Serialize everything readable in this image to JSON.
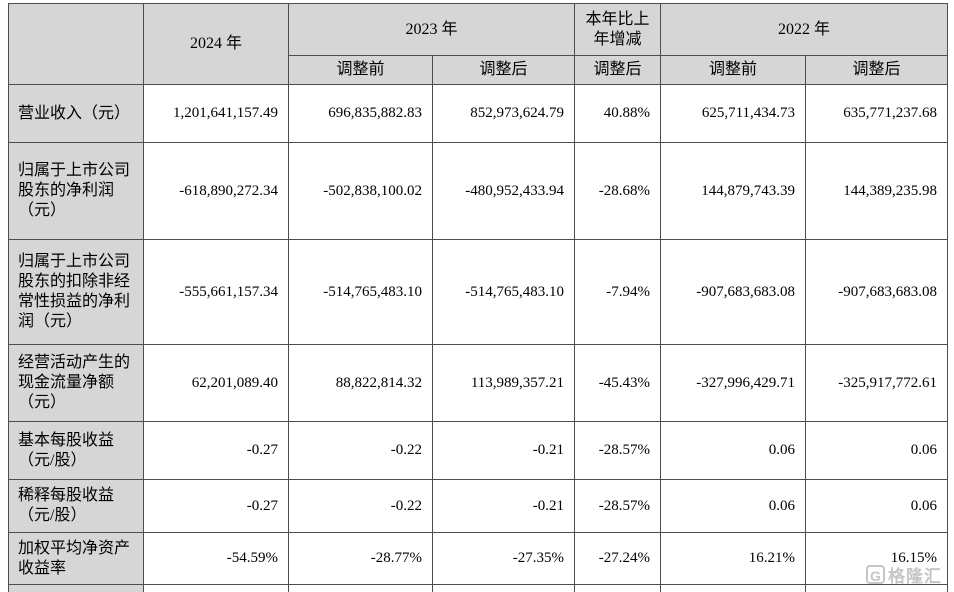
{
  "table": {
    "header": {
      "corner": "",
      "col_2024": "2024 年",
      "col_2023": "2023 年",
      "col_yoy": "本年比上年增减",
      "col_2022": "2022 年",
      "sub_2023_pre": "调整前",
      "sub_2023_post": "调整后",
      "sub_yoy_post": "调整后",
      "sub_2022_pre": "调整前",
      "sub_2022_post": "调整后"
    },
    "rows": [
      {
        "label": "营业收入（元）",
        "values": [
          "1,201,641,157.49",
          "696,835,882.83",
          "852,973,624.79",
          "40.88%",
          "625,711,434.73",
          "635,771,237.68"
        ]
      },
      {
        "label": "归属于上市公司股东的净利润（元）",
        "values": [
          "-618,890,272.34",
          "-502,838,100.02",
          "-480,952,433.94",
          "-28.68%",
          "144,879,743.39",
          "144,389,235.98"
        ]
      },
      {
        "label": "归属于上市公司股东的扣除非经常性损益的净利润（元）",
        "values": [
          "-555,661,157.34",
          "-514,765,483.10",
          "-514,765,483.10",
          "-7.94%",
          "-907,683,683.08",
          "-907,683,683.08"
        ]
      },
      {
        "label": "经营活动产生的现金流量净额（元）",
        "values": [
          "62,201,089.40",
          "88,822,814.32",
          "113,989,357.21",
          "-45.43%",
          "-327,996,429.71",
          "-325,917,772.61"
        ]
      },
      {
        "label": "基本每股收益（元/股）",
        "values": [
          "-0.27",
          "-0.22",
          "-0.21",
          "-28.57%",
          "0.06",
          "0.06"
        ]
      },
      {
        "label": "稀释每股收益（元/股）",
        "values": [
          "-0.27",
          "-0.22",
          "-0.21",
          "-28.57%",
          "0.06",
          "0.06"
        ]
      },
      {
        "label": "加权平均净资产收益率",
        "values": [
          "-54.59%",
          "-28.77%",
          "-27.35%",
          "-27.24%",
          "16.21%",
          "16.15%"
        ]
      }
    ]
  },
  "watermark": {
    "logo_letter": "G",
    "text": "格隆汇"
  },
  "colors": {
    "header_bg": "#d6d6d6",
    "border": "#4d4d4d",
    "text": "#000000",
    "watermark": "#8f8f8f"
  }
}
